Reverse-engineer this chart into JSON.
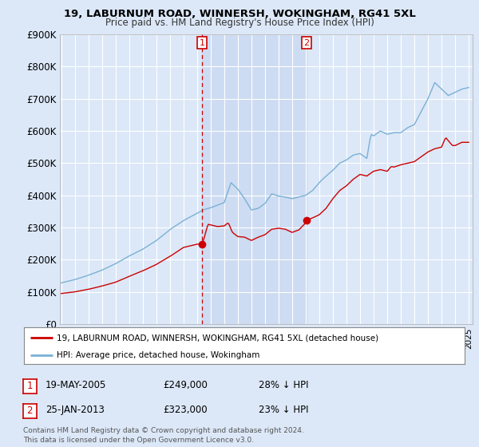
{
  "title": "19, LABURNUM ROAD, WINNERSH, WOKINGHAM, RG41 5XL",
  "subtitle": "Price paid vs. HM Land Registry's House Price Index (HPI)",
  "ylim": [
    0,
    900000
  ],
  "yticks": [
    0,
    100000,
    200000,
    300000,
    400000,
    500000,
    600000,
    700000,
    800000,
    900000
  ],
  "ytick_labels": [
    "£0",
    "£100K",
    "£200K",
    "£300K",
    "£400K",
    "£500K",
    "£600K",
    "£700K",
    "£800K",
    "£900K"
  ],
  "xlim_start": 1994.9,
  "xlim_end": 2025.3,
  "fig_bg_color": "#dce8f8",
  "plot_bg_color": "#dce8f8",
  "grid_color": "#ffffff",
  "transaction1_x": 2005.37,
  "transaction1_y": 249000,
  "transaction2_x": 2013.07,
  "transaction2_y": 323000,
  "sale_color": "#cc0000",
  "hpi_color": "#7ab0d4",
  "vline_color": "#cc0000",
  "shade_color": "#c8d8f0",
  "legend_line1": "19, LABURNUM ROAD, WINNERSH, WOKINGHAM, RG41 5XL (detached house)",
  "legend_line2": "HPI: Average price, detached house, Wokingham",
  "table_row1": [
    "1",
    "19-MAY-2005",
    "£249,000",
    "28% ↓ HPI"
  ],
  "table_row2": [
    "2",
    "25-JAN-2013",
    "£323,000",
    "23% ↓ HPI"
  ],
  "footnote": "Contains HM Land Registry data © Crown copyright and database right 2024.\nThis data is licensed under the Open Government Licence v3.0."
}
